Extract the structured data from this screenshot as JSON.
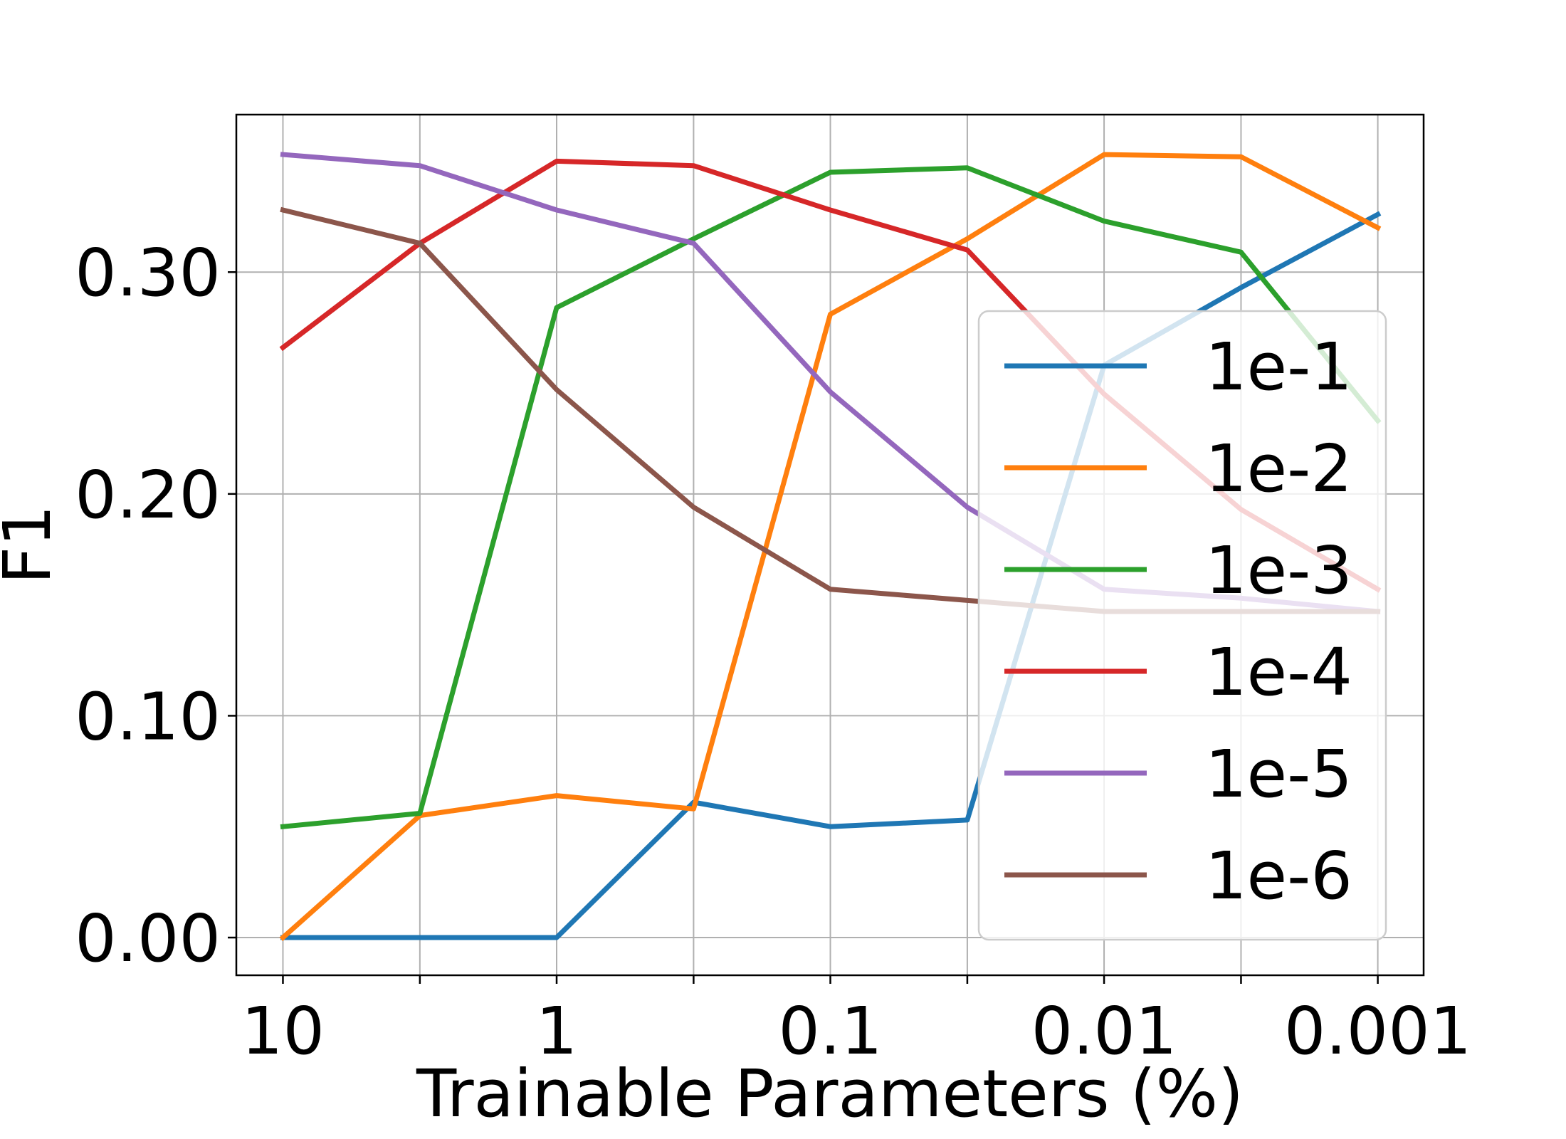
{
  "chart_data": {
    "type": "line",
    "title": "",
    "xlabel": "Trainable Parameters (%)",
    "ylabel": "F1",
    "x": [
      10,
      3.16,
      1,
      0.316,
      0.1,
      0.0316,
      0.01,
      0.00316,
      0.001
    ],
    "x_tick_values": [
      10,
      1,
      0.1,
      0.01,
      0.001
    ],
    "x_tick_labels": [
      "10",
      "1",
      "0.1",
      "0.01",
      "0.001"
    ],
    "x_scale": "log (reversed)",
    "xlim": [
      14.8,
      0.00068
    ],
    "y_tick_values": [
      0.0,
      0.1,
      0.2,
      0.3
    ],
    "y_tick_labels": [
      "0.00",
      "0.10",
      "0.20",
      "0.30"
    ],
    "ylim": [
      -0.017,
      0.371
    ],
    "grid": true,
    "legend_position": "center-right",
    "series": [
      {
        "name": "1e-1",
        "color": "#1f77b4",
        "values": [
          0.0,
          0.0,
          0.0,
          0.061,
          0.05,
          0.053,
          0.258,
          0.293,
          0.326
        ]
      },
      {
        "name": "1e-2",
        "color": "#ff7f0e",
        "values": [
          0.0,
          0.055,
          0.064,
          0.058,
          0.281,
          0.315,
          0.353,
          0.352,
          0.32
        ]
      },
      {
        "name": "1e-3",
        "color": "#2ca02c",
        "values": [
          0.05,
          0.056,
          0.284,
          0.315,
          0.345,
          0.347,
          0.323,
          0.309,
          0.233
        ]
      },
      {
        "name": "1e-4",
        "color": "#d62728",
        "values": [
          0.266,
          0.313,
          0.35,
          0.348,
          0.328,
          0.31,
          0.245,
          0.193,
          0.157
        ]
      },
      {
        "name": "1e-5",
        "color": "#9467bd",
        "values": [
          0.353,
          0.348,
          0.328,
          0.313,
          0.246,
          0.194,
          0.157,
          0.153,
          0.147
        ]
      },
      {
        "name": "1e-6",
        "color": "#8c564b",
        "values": [
          0.328,
          0.313,
          0.247,
          0.194,
          0.157,
          0.152,
          0.147,
          0.147,
          0.147
        ]
      }
    ]
  }
}
